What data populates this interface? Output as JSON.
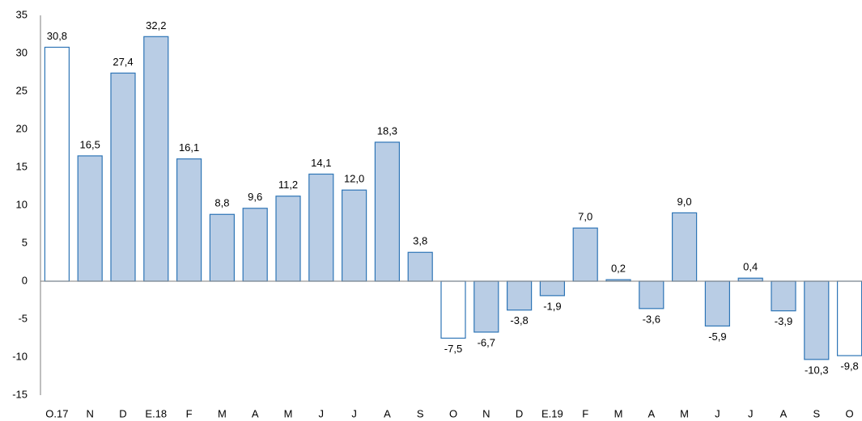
{
  "chart_data": {
    "type": "bar",
    "categories": [
      "O.17",
      "N",
      "D",
      "E.18",
      "F",
      "M",
      "A",
      "M",
      "J",
      "J",
      "A",
      "S",
      "O",
      "N",
      "D",
      "E.19",
      "F",
      "M",
      "A",
      "M",
      "J",
      "J",
      "A",
      "S",
      "O"
    ],
    "values": [
      30.8,
      16.5,
      27.4,
      32.2,
      16.1,
      8.8,
      9.6,
      11.2,
      14.1,
      12.0,
      18.3,
      3.8,
      -7.5,
      -6.7,
      -3.8,
      -1.9,
      7.0,
      0.2,
      -3.6,
      9.0,
      -5.9,
      0.4,
      -3.9,
      -10.3,
      -9.8
    ],
    "value_labels": [
      "30,8",
      "16,5",
      "27,4",
      "32,2",
      "16,1",
      "8,8",
      "9,6",
      "11,2",
      "14,1",
      "12,0",
      "18,3",
      "3,8",
      "-7,5",
      "-6,7",
      "-3,8",
      "-1,9",
      "7,0",
      "0,2",
      "-3,6",
      "9,0",
      "-5,9",
      "0,4",
      "-3,9",
      "-10,3",
      "-9,8"
    ],
    "colors": [
      "#ffffff",
      "#b9cde5",
      "#b9cde5",
      "#b9cde5",
      "#b9cde5",
      "#b9cde5",
      "#b9cde5",
      "#b9cde5",
      "#b9cde5",
      "#b9cde5",
      "#b9cde5",
      "#b9cde5",
      "#ffffff",
      "#b9cde5",
      "#b9cde5",
      "#b9cde5",
      "#b9cde5",
      "#b9cde5",
      "#b9cde5",
      "#b9cde5",
      "#b9cde5",
      "#b9cde5",
      "#b9cde5",
      "#b9cde5",
      "#ffffff"
    ],
    "edge_color": "#2e75b6",
    "ylim": [
      -15,
      35
    ],
    "yticks": [
      35,
      30,
      25,
      20,
      15,
      10,
      5,
      0,
      -5,
      -10,
      -15
    ],
    "grid": false
  }
}
